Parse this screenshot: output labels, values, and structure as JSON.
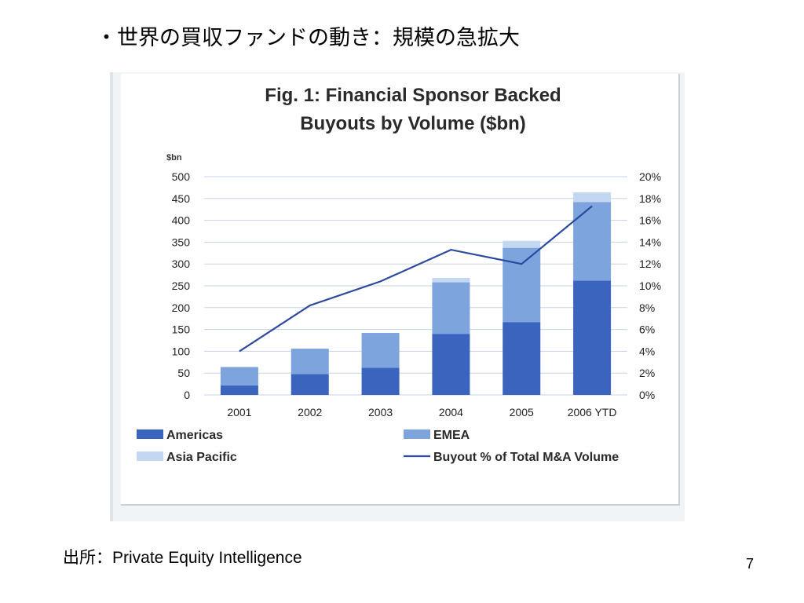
{
  "slide": {
    "title": "・世界の買収ファンドの動き：規模の急拡大",
    "source": "出所：Private Equity Intelligence",
    "page_number": "7"
  },
  "chart_data": {
    "type": "bar",
    "stacked": true,
    "title_line1": "Fig. 1: Financial Sponsor Backed",
    "title_line2": "Buyouts by Volume ($bn)",
    "y_unit_label": "$bn",
    "categories": [
      "2001",
      "2002",
      "2003",
      "2004",
      "2005",
      "2006 YTD"
    ],
    "ylim": [
      0,
      500
    ],
    "y_ticks": [
      "0",
      "50",
      "100",
      "150",
      "200",
      "250",
      "300",
      "350",
      "400",
      "450",
      "500"
    ],
    "y2lim": [
      0,
      20
    ],
    "y2_ticks": [
      "0%",
      "2%",
      "4%",
      "6%",
      "8%",
      "10%",
      "12%",
      "14%",
      "16%",
      "18%",
      "20%"
    ],
    "grid": true,
    "legend_position": "bottom",
    "series": [
      {
        "name": "Americas",
        "color": "#3a64be",
        "values": [
          22,
          48,
          62,
          140,
          167,
          262
        ]
      },
      {
        "name": "EMEA",
        "color": "#7ea4dd",
        "values": [
          42,
          58,
          80,
          118,
          170,
          180
        ]
      },
      {
        "name": "Asia Pacific",
        "color": "#c4d7f1",
        "values": [
          0,
          0,
          0,
          10,
          16,
          22
        ]
      }
    ],
    "line_series": {
      "name": "Buyout % of Total M&A Volume",
      "color": "#2d4a9e",
      "axis": "right",
      "values": [
        4.0,
        8.2,
        10.4,
        13.3,
        12.0,
        17.3
      ]
    }
  }
}
